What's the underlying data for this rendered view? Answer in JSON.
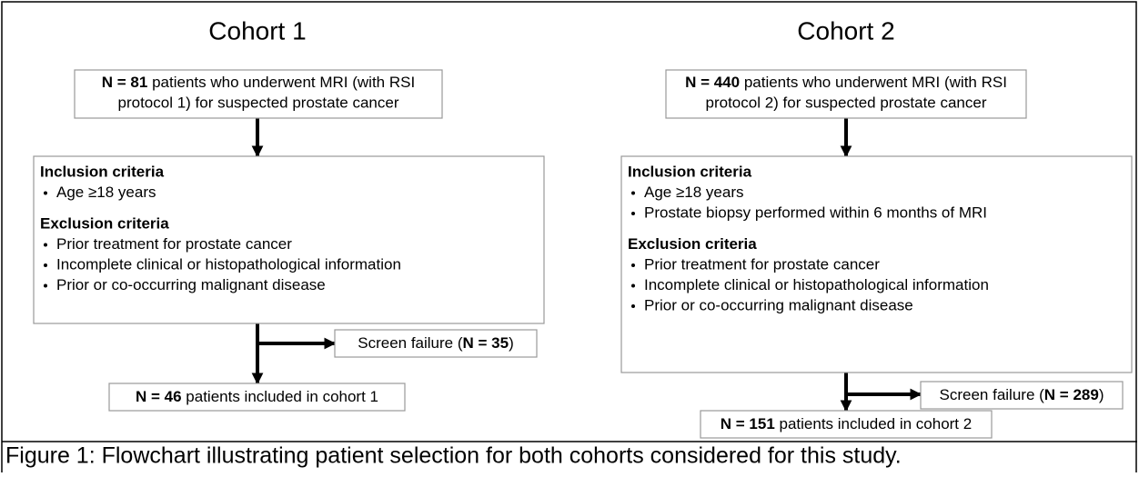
{
  "cohorts": [
    {
      "title": "Cohort 1",
      "source": {
        "bold": "N = 81",
        "line1": "patients who underwent MRI (with RSI",
        "line2": "protocol 1) for suspected prostate cancer"
      },
      "inclusion": {
        "heading": "Inclusion criteria",
        "items": [
          "Age ≥18 years"
        ]
      },
      "exclusion": {
        "heading": "Exclusion criteria",
        "items": [
          "Prior treatment for prostate cancer",
          "Incomplete clinical or histopathological information",
          "Prior or co-occurring malignant disease"
        ]
      },
      "screen_failure": {
        "prefix": "Screen failure (",
        "bold": "N = 35",
        "suffix": ")"
      },
      "final": {
        "bold": "N = 46",
        "text": "patients included in cohort 1"
      }
    },
    {
      "title": "Cohort 2",
      "source": {
        "bold": "N = 440",
        "line1": "patients who underwent MRI (with RSI",
        "line2": "protocol 2) for suspected prostate cancer"
      },
      "inclusion": {
        "heading": "Inclusion criteria",
        "items": [
          "Age ≥18 years",
          "Prostate biopsy performed within 6 months of MRI"
        ]
      },
      "exclusion": {
        "heading": "Exclusion criteria",
        "items": [
          "Prior treatment for prostate cancer",
          "Incomplete clinical or histopathological information",
          "Prior or co-occurring malignant disease"
        ]
      },
      "screen_failure": {
        "prefix": "Screen failure (",
        "bold": "N = 289",
        "suffix": ")"
      },
      "final": {
        "bold": "N = 151",
        "text": "patients included in cohort 2"
      }
    }
  ],
  "caption": "Figure 1: Flowchart illustrating patient selection for both cohorts considered for this study."
}
